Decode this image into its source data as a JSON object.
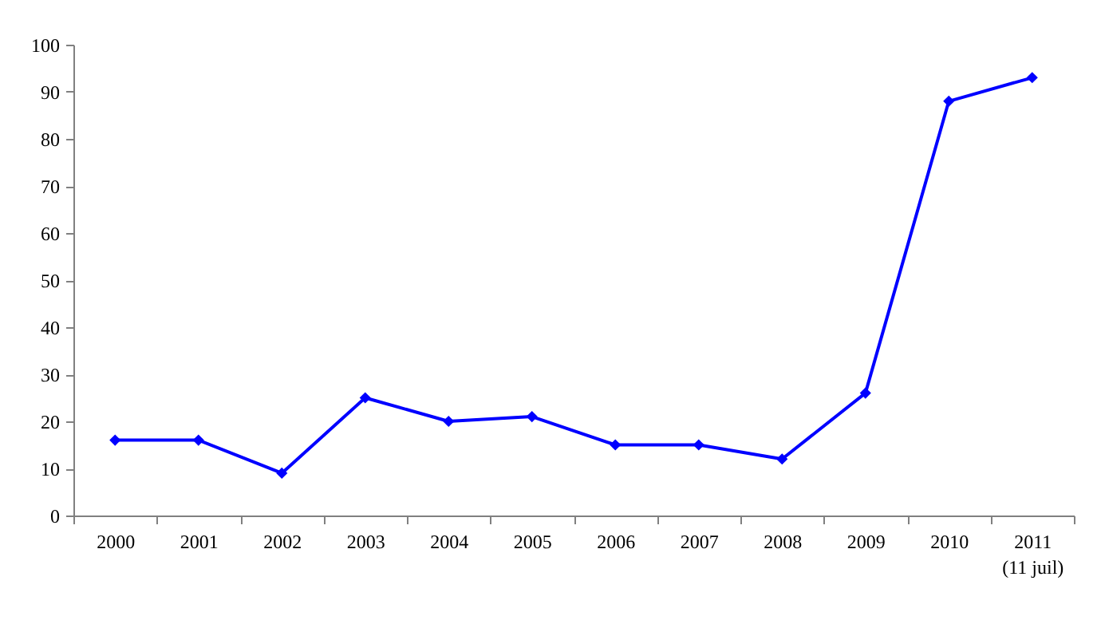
{
  "chart_data": {
    "type": "line",
    "categories": [
      "2000",
      "2001",
      "2002",
      "2003",
      "2004",
      "2005",
      "2006",
      "2007",
      "2008",
      "2009",
      "2010",
      "2011\n(11 juil)"
    ],
    "series": [
      {
        "color": "#0000ff",
        "values": [
          16,
          16,
          9,
          25,
          20,
          21,
          15,
          15,
          12,
          26,
          88,
          93
        ]
      }
    ],
    "ylim": [
      0,
      100
    ],
    "yticks": [
      0,
      10,
      20,
      30,
      40,
      50,
      60,
      70,
      80,
      90,
      100
    ],
    "grid": false,
    "marker": "diamond",
    "line_style": "solid"
  }
}
